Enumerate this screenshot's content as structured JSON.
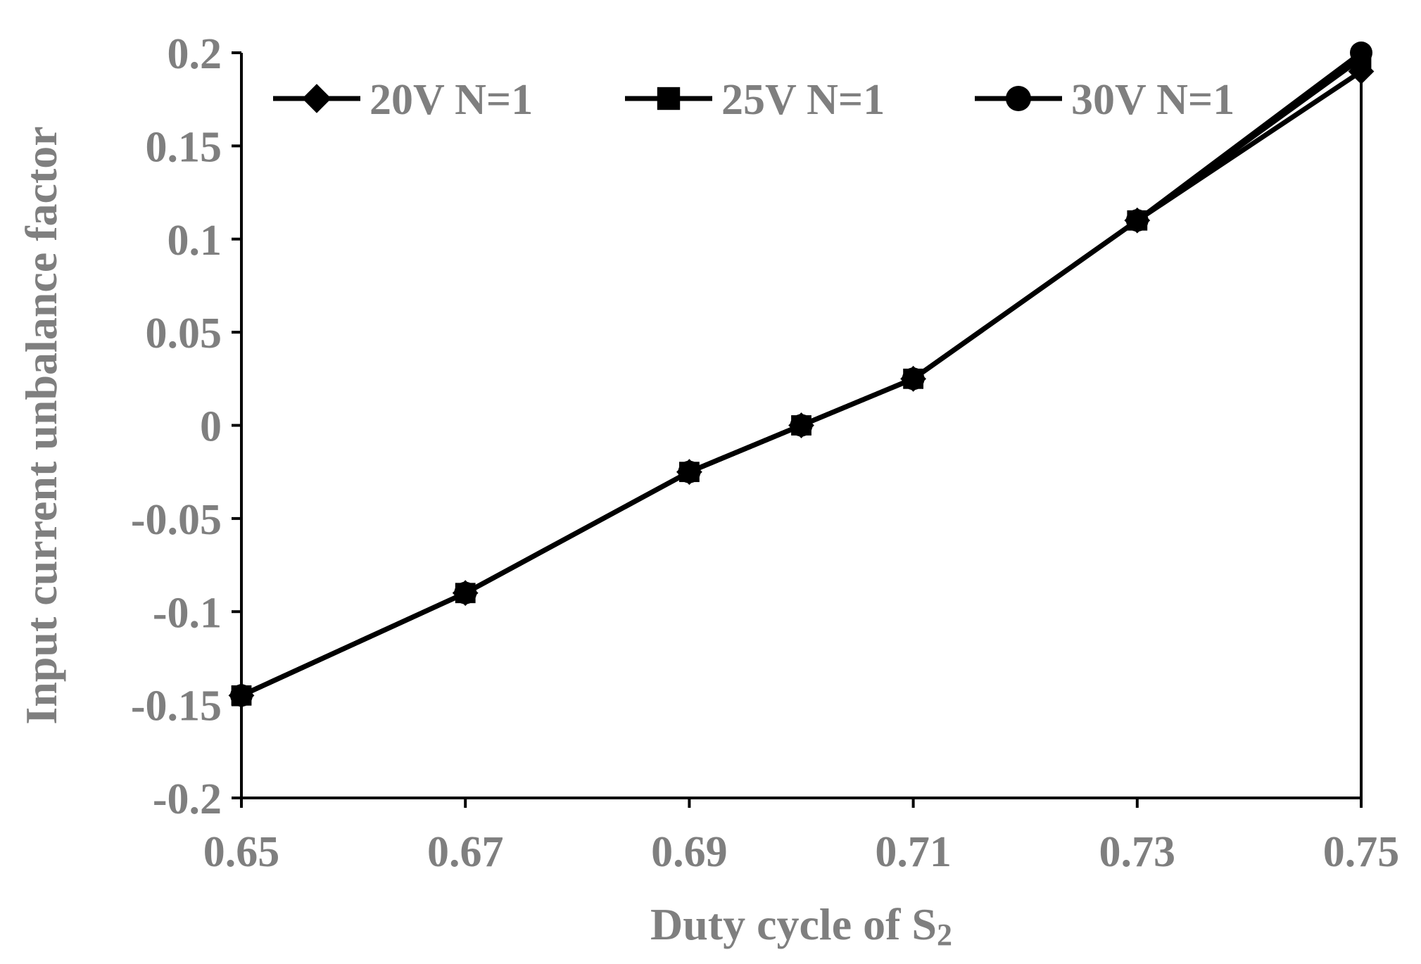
{
  "chart_data": {
    "type": "line",
    "title": "",
    "xlabel": "Duty cycle of S",
    "xlabel_subscript": "2",
    "ylabel": "Input current unbalance factor",
    "xlim": [
      0.65,
      0.75
    ],
    "ylim": [
      -0.2,
      0.2
    ],
    "x": [
      0.65,
      0.67,
      0.69,
      0.7,
      0.71,
      0.73,
      0.75
    ],
    "x_tick_values": [
      0.65,
      0.67,
      0.69,
      0.71,
      0.73,
      0.75
    ],
    "x_tick_labels": [
      "0.65",
      "0.67",
      "0.69",
      "0.71",
      "0.73",
      "0.75"
    ],
    "y_tick_values": [
      0.2,
      0.15,
      0.1,
      0.05,
      0,
      -0.05,
      -0.1,
      -0.15,
      -0.2
    ],
    "y_tick_labels": [
      "0.2",
      "0.15",
      "0.1",
      "0.05",
      "0",
      "-0.05",
      "-0.1",
      "-0.15",
      "-0.2"
    ],
    "grid": false,
    "legend_position": "top",
    "series": [
      {
        "name": "20V N=1",
        "marker": "diamond",
        "values": [
          -0.145,
          -0.09,
          -0.025,
          0,
          0.025,
          0.11,
          0.19
        ]
      },
      {
        "name": "25V N=1",
        "marker": "square",
        "values": [
          -0.145,
          -0.09,
          -0.025,
          0,
          0.025,
          0.11,
          0.197
        ]
      },
      {
        "name": "30V N=1",
        "marker": "circle",
        "values": [
          -0.145,
          -0.09,
          -0.025,
          0,
          0.025,
          0.11,
          0.2
        ]
      }
    ],
    "colors": {
      "line": "#000000",
      "text": "#7f7f7f"
    }
  }
}
